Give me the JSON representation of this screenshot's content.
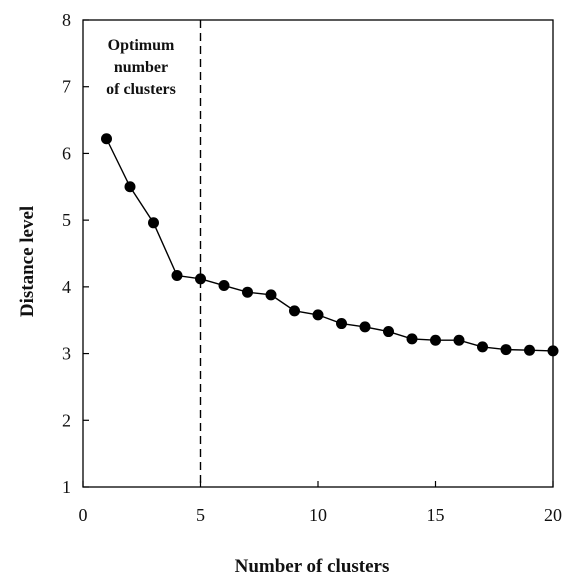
{
  "chart_data": {
    "type": "line",
    "title": "",
    "xlabel": "Number of clusters",
    "ylabel": "Distance level",
    "xlim": [
      0,
      20
    ],
    "ylim": [
      1,
      8
    ],
    "xticks": [
      0,
      5,
      10,
      15,
      20
    ],
    "yticks": [
      1,
      2,
      3,
      4,
      5,
      6,
      7,
      8
    ],
    "xtick_labels": [
      "0",
      "5",
      "10",
      "15",
      "20"
    ],
    "ytick_labels": [
      "1",
      "2",
      "3",
      "4",
      "5",
      "6",
      "7",
      "8"
    ],
    "grid": false,
    "legend": "none",
    "series": [
      {
        "x": [
          1,
          2,
          3,
          4,
          5,
          6,
          7,
          8,
          9,
          10,
          11,
          12,
          13,
          14,
          15,
          16,
          17,
          18,
          19,
          20
        ],
        "values": [
          6.22,
          5.5,
          4.96,
          4.17,
          4.12,
          4.02,
          3.92,
          3.88,
          3.64,
          3.58,
          3.45,
          3.4,
          3.33,
          3.22,
          3.2,
          3.2,
          3.1,
          3.06,
          3.05,
          3.04
        ],
        "color": "#000000",
        "marker": "circle"
      }
    ],
    "vline": {
      "x": 5,
      "style": "dashed",
      "color": "#000000"
    },
    "annotation": {
      "lines": [
        "Optimum",
        "number",
        "of clusters"
      ]
    }
  }
}
